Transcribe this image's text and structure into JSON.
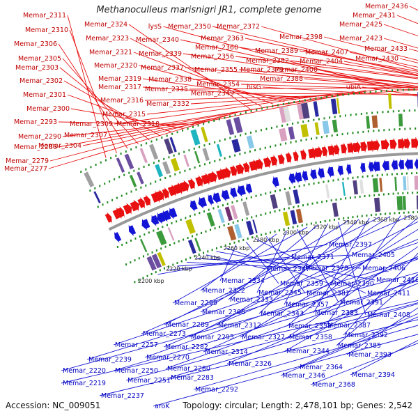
{
  "title": "Methanoculleus marisnigri JR1, complete genome",
  "footer": {
    "accession": "Accession: NC_009051",
    "summary": "Topology: circular; Length: 2,478,101 bp; Genes: 2,542"
  },
  "colors": {
    "forward": "#e81010",
    "reverse": "#1414d6",
    "forward_label": "#c00000",
    "reverse_label": "#0000c0",
    "backbone": "#999999",
    "dots": "#1f8a1f"
  },
  "scale_labels": [
    "2200 kbp",
    "2220 kbp",
    "2240 kbp",
    "2260 kbp",
    "2280 kbp",
    "2300 kbp",
    "2320 kbp",
    "2340 kbp",
    "2360 kbp",
    "2380 kbp",
    "2400 kbp"
  ],
  "forward_labels": [
    "Memar_2311",
    "Memar_2310",
    "Memar_2306",
    "Memar_2305",
    "Memar_2303",
    "Memar_2302",
    "Memar_2301",
    "Memar_2300",
    "Memar_2293",
    "Memar_2290",
    "Memar_2286",
    "Memar_2279",
    "Memar_2277",
    "Memar_2324",
    "Memar_2323",
    "Memar_2321",
    "Memar_2320",
    "Memar_2319",
    "Memar_2317",
    "Memar_2316",
    "Memar_2315",
    "Memar_2309",
    "Memar_2307",
    "Memar_2304",
    "Memar_2318",
    "lysS",
    "Memar_2340",
    "Memar_2339",
    "Memar_2337",
    "Memar_2338",
    "Memar_2335",
    "Memar_2332",
    "Memar_2350",
    "Memar_2372",
    "Memar_2363",
    "Memar_2360",
    "Memar_2356",
    "Memar_2355",
    "Memar_2354",
    "Memar_2349",
    "Memar_2398",
    "Memar_2389",
    "Memar_2382",
    "Memar_2379",
    "Memar_2388",
    "hisG",
    "Memar_2436",
    "Memar_2431",
    "Memar_2425",
    "Memar_2423",
    "Memar_2433",
    "Memar_2407",
    "Memar_2404",
    "Memar_2430",
    "Memar_2400",
    "ubiA"
  ],
  "reverse_labels": [
    "Memar_2397",
    "Memar_2371",
    "Memar_2405",
    "Memar_2378",
    "Memar_2406",
    "Memar_2347",
    "Memar_2416",
    "Memar_2390",
    "Memar_2334",
    "Memar_2359",
    "Memar_2411",
    "Memar_2381",
    "Memar_2322",
    "Memar_2345",
    "Memar_2391",
    "Memar_2299",
    "Memar_2333",
    "Memar_2357",
    "Memar_2408",
    "Memar_2308",
    "Memar_2343",
    "Memar_2383",
    "Memar_2289",
    "Memar_2312",
    "Memar_2387",
    "Memar_2273",
    "Memar_2353",
    "Memar_2295",
    "Memar_2327",
    "Memar_2392",
    "Memar_2358",
    "Memar_2282",
    "Memar_2385",
    "Memar_2257",
    "Memar_2314",
    "Memar_2344",
    "Memar_2270",
    "Memar_2239",
    "Memar_2393",
    "Memar_2326",
    "Memar_2280",
    "Memar_2220",
    "Memar_2250",
    "Memar_2364",
    "Memar_2346",
    "Memar_2394",
    "Memar_2283",
    "Memar_2251",
    "Memar_2219",
    "Memar_2368",
    "Memar_2292",
    "Memar_2237",
    "aroK"
  ]
}
